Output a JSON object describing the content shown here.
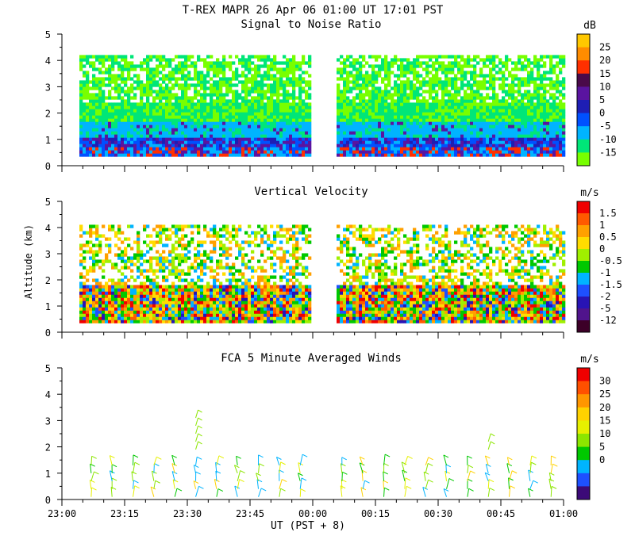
{
  "header": {
    "title": "T-REX  MAPR 26 Apr 06  01:00 UT  17:01  PST"
  },
  "xaxis": {
    "label": "UT  (PST + 8)",
    "ticks": [
      "23:00",
      "23:15",
      "23:30",
      "23:45",
      "00:00",
      "00:15",
      "00:30",
      "00:45",
      "01:00"
    ]
  },
  "yaxis": {
    "label": "Altitude (km)",
    "ticks": [
      "0",
      "1",
      "2",
      "3",
      "4",
      "5"
    ]
  },
  "chart_data": [
    {
      "type": "heatmap",
      "title": "Signal to Noise Ratio",
      "xlabel": "UT  (PST + 8)",
      "ylabel": "Altitude (km)",
      "xlim": [
        "23:00",
        "01:00"
      ],
      "ylim": [
        0,
        5
      ],
      "colorbar": {
        "unit": "dB",
        "labels": [
          "25",
          "20",
          "15",
          "10",
          "5",
          "0",
          "-5",
          "-10",
          "-15"
        ],
        "colors": [
          "#ffc800",
          "#ff8c00",
          "#ff3000",
          "#4a0a4a",
          "#5a14a0",
          "#1e1eb4",
          "#0050ff",
          "#00b4ff",
          "#00e678",
          "#78ff00"
        ]
      },
      "data_gap": [
        "00:00",
        "00:05"
      ],
      "structure": [
        {
          "alt_from": 0.35,
          "alt_to": 0.6,
          "level": "-5 to 25 (mixed, strong returns)"
        },
        {
          "alt_from": 0.6,
          "alt_to": 1.5,
          "level": "-5 to 5"
        },
        {
          "alt_from": 1.5,
          "alt_to": 2.3,
          "level": "-10"
        },
        {
          "alt_from": 2.3,
          "alt_to": 4.1,
          "level": "-15 (patchy, gaps)"
        }
      ]
    },
    {
      "type": "heatmap",
      "title": "Vertical Velocity",
      "xlabel": "UT  (PST + 8)",
      "ylabel": "Altitude (km)",
      "xlim": [
        "23:00",
        "01:00"
      ],
      "ylim": [
        0,
        5
      ],
      "colorbar": {
        "unit": "m/s",
        "labels": [
          "1.5",
          "1",
          "0.5",
          "0",
          "-0.5",
          "-1",
          "-1.5",
          "-2",
          "-5",
          "-12"
        ],
        "colors": [
          "#f00000",
          "#ff5a00",
          "#ffa000",
          "#ffdc00",
          "#a0f000",
          "#00c800",
          "#00b4ff",
          "#1e50ff",
          "#2814b4",
          "#50148c",
          "#3c0028"
        ]
      },
      "data_gap": [
        "00:00",
        "00:05"
      ]
    },
    {
      "type": "scatter",
      "title": "FCA 5 Minute Averaged Winds",
      "xlabel": "UT  (PST + 8)",
      "ylabel": "Altitude (km)",
      "xlim": [
        "23:00",
        "01:00"
      ],
      "ylim": [
        0,
        5
      ],
      "colorbar": {
        "unit": "m/s",
        "labels": [
          "30",
          "25",
          "20",
          "15",
          "10",
          "5",
          "0"
        ],
        "colors": [
          "#f00000",
          "#ff5000",
          "#ff9600",
          "#ffd200",
          "#e6f000",
          "#8ce600",
          "#00c800",
          "#00b4ff",
          "#1e50ff",
          "#3c0a78"
        ]
      },
      "barb_times": [
        "23:07",
        "23:12",
        "23:17",
        "23:22",
        "23:27",
        "23:32",
        "23:37",
        "23:42",
        "23:47",
        "23:52",
        "23:57",
        "00:07",
        "00:12",
        "00:17",
        "00:22",
        "00:27",
        "00:32",
        "00:37",
        "00:42",
        "00:47",
        "00:52",
        "00:57"
      ],
      "barb_altitudes": [
        0.1,
        0.4,
        0.7,
        1.0,
        1.3
      ],
      "high_barbs": [
        {
          "time": "23:32",
          "alt_from": 1.9,
          "alt_to": 3.3
        },
        {
          "time": "00:42",
          "alt_from": 1.9,
          "alt_to": 2.2
        }
      ],
      "speed_range": [
        5,
        20
      ]
    }
  ]
}
